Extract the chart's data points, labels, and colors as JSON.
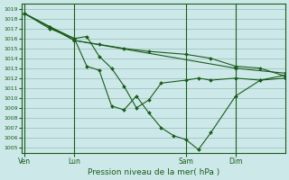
{
  "background_color": "#cce8e8",
  "grid_color": "#99bbbb",
  "line_color": "#1a5c1a",
  "xlabel": "Pression niveau de la mer( hPa )",
  "ylim": [
    1004.5,
    1019.5
  ],
  "yticks": [
    1005,
    1006,
    1007,
    1008,
    1009,
    1010,
    1011,
    1012,
    1013,
    1014,
    1015,
    1016,
    1017,
    1018,
    1019
  ],
  "xtick_labels": [
    "Ven",
    "Lun",
    "Sam",
    "Dim"
  ],
  "xtick_positions": [
    0,
    16,
    52,
    68
  ],
  "xlim": [
    -1,
    84
  ],
  "series": [
    {
      "x": [
        0,
        16,
        68,
        84
      ],
      "y": [
        1018.5,
        1015.8,
        1013.0,
        1012.5
      ]
    },
    {
      "x": [
        0,
        8,
        16,
        24,
        32,
        40,
        52,
        60,
        68,
        76,
        84
      ],
      "y": [
        1018.5,
        1017.2,
        1015.8,
        1015.4,
        1015.0,
        1014.7,
        1014.4,
        1014.0,
        1013.2,
        1013.0,
        1012.2
      ]
    },
    {
      "x": [
        0,
        8,
        16,
        20,
        24,
        28,
        32,
        36,
        40,
        44,
        52,
        56,
        60,
        68,
        76,
        84
      ],
      "y": [
        1018.5,
        1017.0,
        1016.0,
        1016.2,
        1014.2,
        1013.0,
        1011.2,
        1009.0,
        1009.8,
        1011.5,
        1011.8,
        1012.0,
        1011.8,
        1012.0,
        1011.8,
        1012.0
      ]
    },
    {
      "x": [
        0,
        8,
        16,
        20,
        24,
        28,
        32,
        36,
        40,
        44,
        48,
        52,
        56,
        60,
        68,
        76,
        84
      ],
      "y": [
        1018.5,
        1017.2,
        1016.0,
        1013.2,
        1012.8,
        1009.2,
        1008.8,
        1010.2,
        1008.5,
        1007.0,
        1006.2,
        1005.8,
        1004.8,
        1006.5,
        1010.2,
        1011.8,
        1012.3
      ]
    }
  ]
}
